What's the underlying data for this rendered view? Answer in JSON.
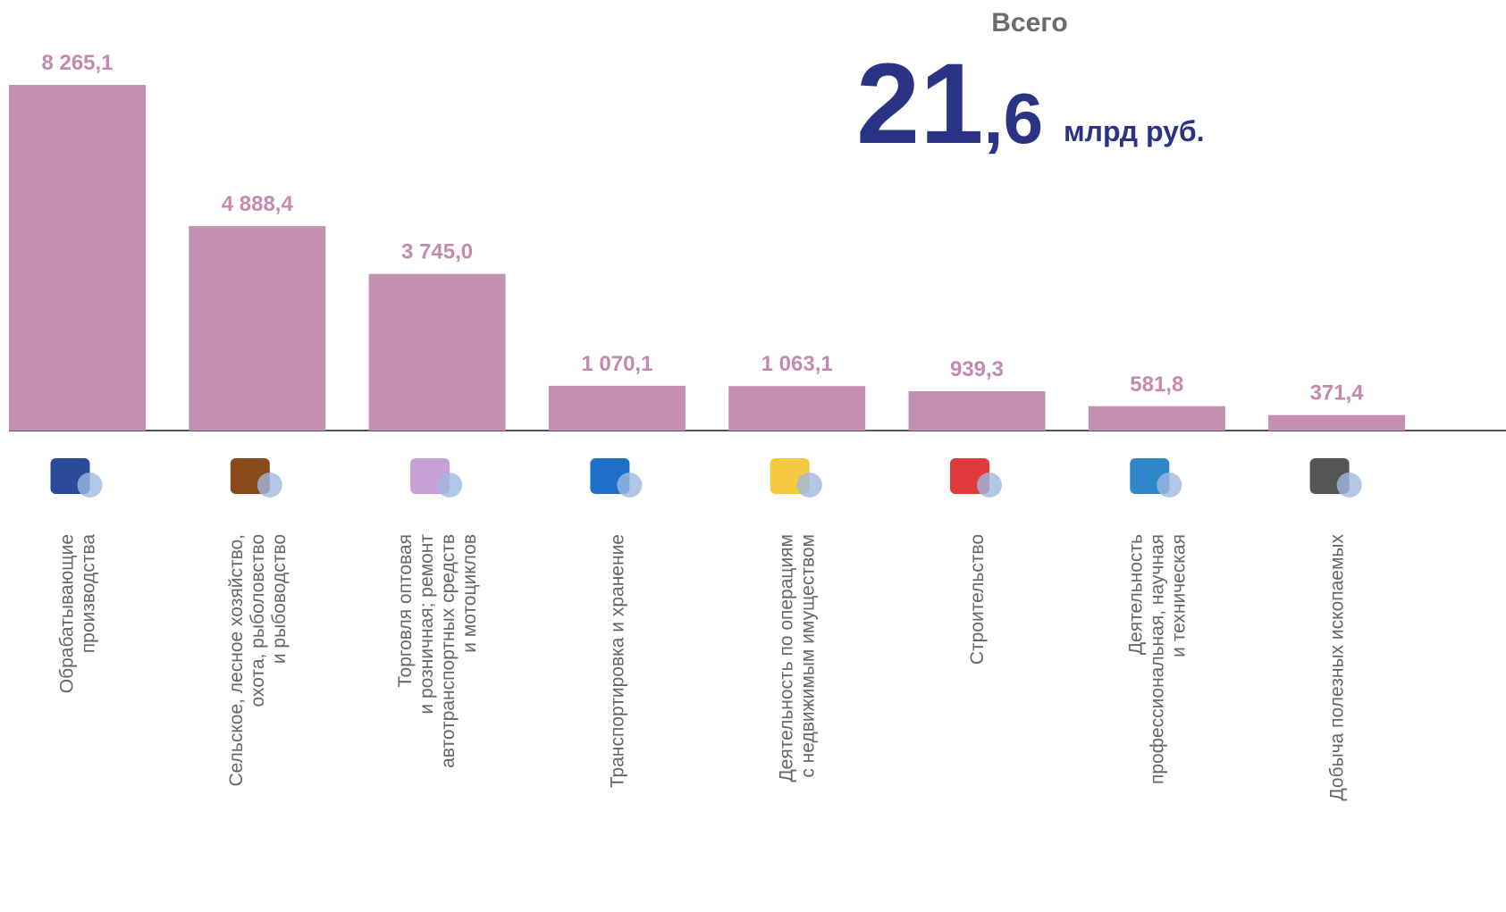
{
  "chart_data": {
    "type": "bar",
    "total_label": "Всего",
    "total_parts": [
      "21",
      ",6"
    ],
    "total_unit": "млрд руб.",
    "categories": [
      [
        "Обрабатывающие",
        "производства"
      ],
      [
        "Сельское, лесное хозяйство,",
        "охота, рыболовство",
        "и рыбоводство"
      ],
      [
        "Торговля оптовая",
        "и розничная; ремонт",
        "автотранспортных средств",
        "и мотоциклов"
      ],
      [
        "Транспортировка и хранение"
      ],
      [
        "Деятельность по операциям",
        "с недвижимым имуществом"
      ],
      [
        "Строительство"
      ],
      [
        "Деятельность",
        "профессиональная, научная",
        "и техническая"
      ],
      [
        "Добыча полезных ископаемых"
      ]
    ],
    "values": [
      8265.1,
      4888.4,
      3745.0,
      1070.1,
      1063.1,
      939.3,
      581.8,
      371.4
    ],
    "value_labels": [
      "8 265,1",
      "4 888,4",
      "3 745,0",
      "1 070,1",
      "1 063,1",
      "939,3",
      "581,8",
      "371,4"
    ],
    "color": "#c490b1",
    "ylim": [
      0,
      8300
    ]
  }
}
